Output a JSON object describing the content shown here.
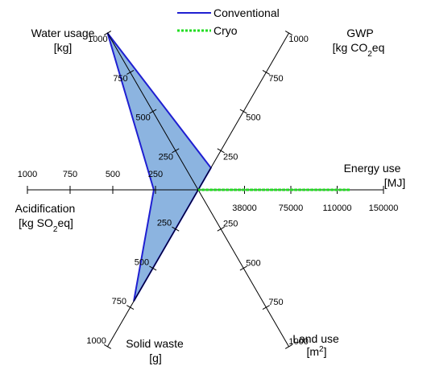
{
  "chart_data": {
    "type": "radar",
    "series": [
      {
        "name": "Conventional",
        "color": "#1f1fd1",
        "fill": "#8cb4e0",
        "values": {
          "water_usage": 1000,
          "gwp": 140,
          "energy_use": 0,
          "land_use": 0,
          "solid_waste": 710,
          "acidification": 260
        }
      },
      {
        "name": "Cryo",
        "color": "#22dd22",
        "values": {
          "water_usage": 0,
          "gwp": 0,
          "energy_use": 123000,
          "land_use": 0,
          "solid_waste": 0,
          "acidification": 0
        }
      }
    ],
    "axes": [
      {
        "id": "water_usage",
        "title": "Water usage",
        "unit": "[kg]",
        "max": 1000,
        "ticks": [
          "250",
          "500",
          "750",
          "1000"
        ]
      },
      {
        "id": "gwp",
        "title": "GWP",
        "unit": "[kg CO2eq",
        "max": 1000,
        "ticks": [
          "250",
          "500",
          "750",
          "1000"
        ]
      },
      {
        "id": "energy_use",
        "title": "Energy use",
        "unit": "[MJ]",
        "max": 150000,
        "ticks": [
          "38000",
          "75000",
          "110000",
          "150000"
        ]
      },
      {
        "id": "land_use",
        "title": "Land use",
        "unit": "[m2]",
        "max": 1000,
        "ticks": [
          "250",
          "500",
          "750",
          "1000"
        ]
      },
      {
        "id": "solid_waste",
        "title": "Solid waste",
        "unit": "[g]",
        "max": 1000,
        "ticks": [
          "250",
          "500",
          "750",
          "1000"
        ]
      },
      {
        "id": "acidification",
        "title": "Acidification",
        "unit": "[kg SO2eq]",
        "max": 1000,
        "ticks": [
          "250",
          "500",
          "750",
          "1000"
        ]
      }
    ],
    "legend_position": "top",
    "grid": false
  }
}
